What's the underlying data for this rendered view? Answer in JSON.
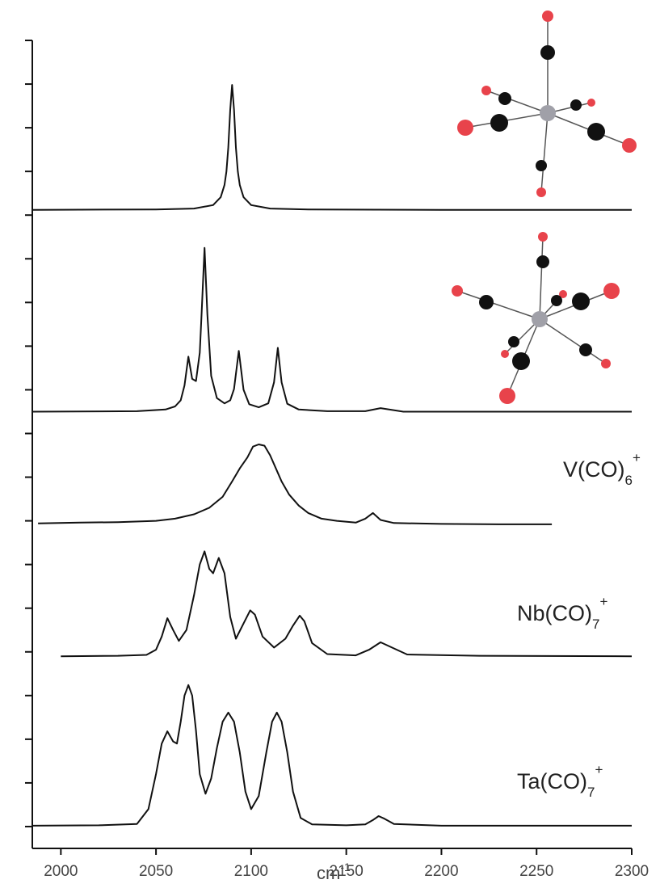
{
  "chart_data": {
    "type": "line",
    "xlim": [
      1985,
      2300
    ],
    "xticks": [
      2000,
      2050,
      2100,
      2150,
      2200,
      2250,
      2300
    ],
    "ylim": [
      0,
      18.5
    ],
    "yticks": [
      0.5,
      1.5,
      2.5,
      3.5,
      4.5,
      5.5,
      6.5,
      7.5,
      8.5,
      9.5,
      10.5,
      11.5,
      12.5,
      13.5,
      14.5,
      15.5,
      16.5,
      17.5,
      18.5
    ],
    "x_label": {
      "text": "cm",
      "sup": "-1"
    },
    "annotations": [
      {
        "text": "V(CO)",
        "sub": "6",
        "sup": "+"
      },
      {
        "text": "Nb(CO)",
        "sub": "7",
        "sup": "+"
      },
      {
        "text": "Ta(CO)",
        "sub": "7",
        "sup": "+"
      }
    ],
    "series": [
      {
        "color": "#111111",
        "x": [
          1985,
          2050,
          2070,
          2080,
          2084,
          2086,
          2087,
          2088,
          2089,
          2090,
          2091,
          2092,
          2093,
          2094,
          2096,
          2100,
          2110,
          2130,
          2200,
          2300
        ],
        "values": [
          14.62,
          14.63,
          14.65,
          14.73,
          14.91,
          15.19,
          15.5,
          16.05,
          16.91,
          17.48,
          16.91,
          16.05,
          15.5,
          15.19,
          14.91,
          14.73,
          14.65,
          14.63,
          14.62,
          14.62
        ]
      },
      {
        "color": "#111111",
        "x": [
          1985,
          2040,
          2055,
          2060,
          2063,
          2065,
          2067,
          2069,
          2071,
          2073,
          2074,
          2075.5,
          2077,
          2079,
          2082,
          2086,
          2089,
          2091,
          2093.5,
          2096,
          2099,
          2104,
          2109,
          2112,
          2114,
          2116,
          2119,
          2125,
          2140,
          2160,
          2168,
          2180,
          2300
        ],
        "values": [
          10.0,
          10.01,
          10.05,
          10.12,
          10.26,
          10.6,
          11.26,
          10.75,
          10.7,
          11.35,
          12.26,
          13.75,
          12.23,
          10.82,
          10.31,
          10.19,
          10.26,
          10.52,
          11.39,
          10.5,
          10.17,
          10.1,
          10.19,
          10.67,
          11.46,
          10.67,
          10.18,
          10.05,
          10.01,
          10.01,
          10.08,
          10.0,
          10.0
        ]
      },
      {
        "color": "#111111",
        "x": [
          1988,
          2010,
          2030,
          2050,
          2060,
          2070,
          2078,
          2085,
          2090,
          2094,
          2098,
          2101,
          2104,
          2107,
          2110,
          2113,
          2116,
          2120,
          2125,
          2130,
          2137,
          2145,
          2155,
          2160,
          2164,
          2168,
          2175,
          2200,
          2230,
          2258
        ],
        "values": [
          7.44,
          7.46,
          7.47,
          7.5,
          7.55,
          7.65,
          7.8,
          8.05,
          8.4,
          8.7,
          8.95,
          9.2,
          9.25,
          9.22,
          9.0,
          8.7,
          8.4,
          8.1,
          7.85,
          7.68,
          7.55,
          7.5,
          7.46,
          7.55,
          7.68,
          7.52,
          7.45,
          7.43,
          7.42,
          7.42
        ]
      },
      {
        "color": "#111111",
        "x": [
          2000,
          2030,
          2045,
          2050,
          2053,
          2056,
          2059,
          2062,
          2066,
          2070,
          2073,
          2075.5,
          2078,
          2080,
          2083,
          2086,
          2089,
          2092,
          2096,
          2099.5,
          2102,
          2106,
          2112,
          2118,
          2122,
          2125.5,
          2128,
          2132,
          2140,
          2155,
          2162,
          2168,
          2174,
          2182,
          2220,
          2300
        ],
        "values": [
          4.4,
          4.41,
          4.43,
          4.55,
          4.85,
          5.27,
          5.0,
          4.75,
          5.0,
          5.8,
          6.5,
          6.8,
          6.4,
          6.3,
          6.65,
          6.3,
          5.3,
          4.8,
          5.15,
          5.45,
          5.35,
          4.85,
          4.6,
          4.8,
          5.1,
          5.33,
          5.2,
          4.7,
          4.45,
          4.42,
          4.55,
          4.72,
          4.6,
          4.44,
          4.41,
          4.4
        ]
      },
      {
        "color": "#111111",
        "x": [
          1985,
          2020,
          2040,
          2046,
          2050,
          2053,
          2056,
          2059,
          2061,
          2063,
          2065,
          2067,
          2069,
          2071,
          2073,
          2076,
          2079,
          2082,
          2085,
          2088,
          2091,
          2094,
          2097,
          2100,
          2104,
          2108,
          2111,
          2113.5,
          2116,
          2119,
          2122,
          2126,
          2132,
          2150,
          2160,
          2164,
          2167,
          2170,
          2175,
          2200,
          2300
        ],
        "values": [
          0.52,
          0.53,
          0.56,
          0.9,
          1.7,
          2.4,
          2.68,
          2.45,
          2.4,
          2.9,
          3.5,
          3.74,
          3.5,
          2.7,
          1.7,
          1.25,
          1.6,
          2.3,
          2.9,
          3.11,
          2.9,
          2.2,
          1.3,
          0.9,
          1.2,
          2.2,
          2.9,
          3.11,
          2.9,
          2.2,
          1.3,
          0.7,
          0.55,
          0.53,
          0.55,
          0.65,
          0.74,
          0.68,
          0.56,
          0.52,
          0.52
        ]
      }
    ]
  }
}
